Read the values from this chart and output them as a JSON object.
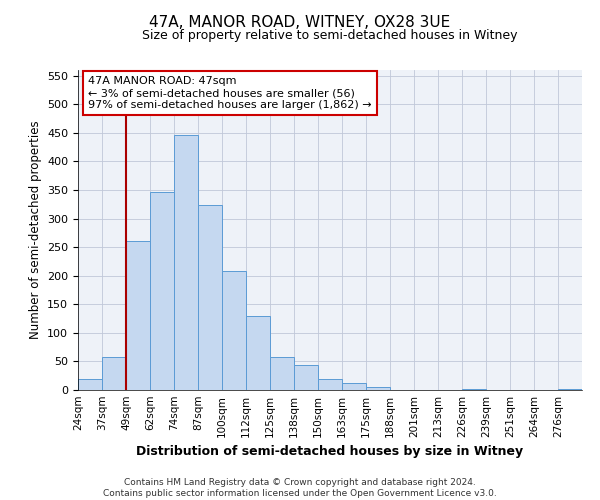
{
  "title": "47A, MANOR ROAD, WITNEY, OX28 3UE",
  "subtitle": "Size of property relative to semi-detached houses in Witney",
  "xlabel": "Distribution of semi-detached houses by size in Witney",
  "ylabel": "Number of semi-detached properties",
  "bin_labels": [
    "24sqm",
    "37sqm",
    "49sqm",
    "62sqm",
    "74sqm",
    "87sqm",
    "100sqm",
    "112sqm",
    "125sqm",
    "138sqm",
    "150sqm",
    "163sqm",
    "175sqm",
    "188sqm",
    "201sqm",
    "213sqm",
    "226sqm",
    "239sqm",
    "251sqm",
    "264sqm",
    "276sqm"
  ],
  "bar_heights": [
    20,
    57,
    260,
    347,
    447,
    323,
    209,
    130,
    57,
    43,
    19,
    12,
    5,
    0,
    0,
    0,
    2,
    0,
    0,
    0,
    1
  ],
  "bar_color": "#c5d8f0",
  "bar_edge_color": "#5b9bd5",
  "annotation_text_line1": "47A MANOR ROAD: 47sqm",
  "annotation_text_line2": "← 3% of semi-detached houses are smaller (56)",
  "annotation_text_line3": "97% of semi-detached houses are larger (1,862) →",
  "vline_x_bin": 2,
  "vline_color": "#aa0000",
  "ylim": [
    0,
    560
  ],
  "yticks": [
    0,
    50,
    100,
    150,
    200,
    250,
    300,
    350,
    400,
    450,
    500,
    550
  ],
  "footer_line1": "Contains HM Land Registry data © Crown copyright and database right 2024.",
  "footer_line2": "Contains public sector information licensed under the Open Government Licence v3.0.",
  "bg_color": "#ffffff",
  "plot_bg_color": "#eef2f8",
  "grid_color": "#c0c8d8",
  "annotation_box_color": "#ffffff",
  "annotation_box_edge_color": "#cc0000"
}
